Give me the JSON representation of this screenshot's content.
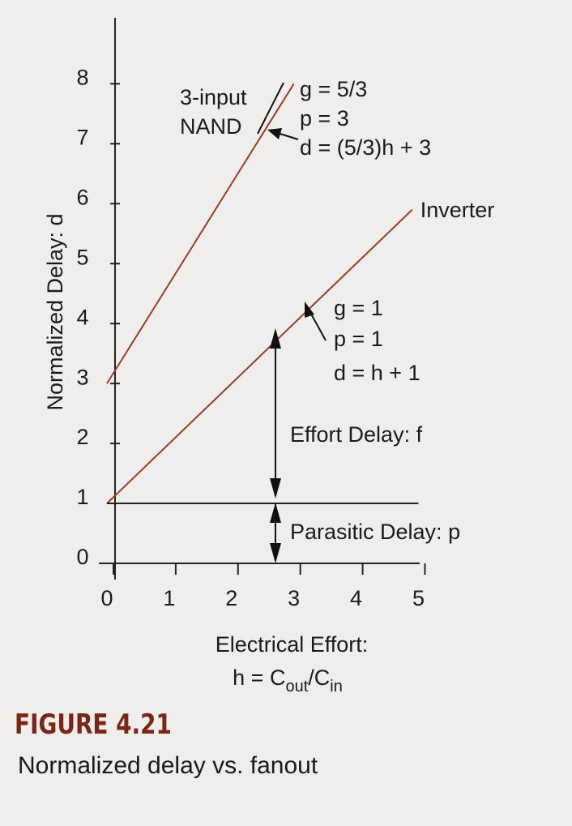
{
  "chart_data": {
    "type": "line",
    "ylabel": "Normalized Delay: d",
    "xlabel": "Electrical Effort:",
    "xlabel_formula": [
      "h = C",
      "out",
      "/C",
      "in"
    ],
    "xlim": [
      0,
      5.15
    ],
    "ylim": [
      0,
      9.1
    ],
    "xticks": [
      0,
      1,
      2,
      3,
      4,
      5
    ],
    "yticks": [
      0,
      1,
      2,
      3,
      4,
      5,
      6,
      7,
      8
    ],
    "series": [
      {
        "color": "#9a3a24",
        "x": [
          0,
          3
        ],
        "values": [
          3,
          8
        ]
      },
      {
        "name": "Inverter",
        "color": "#9a3a24",
        "x": [
          0,
          4.9
        ],
        "values": [
          1,
          5.9
        ]
      },
      {
        "color": "#222222",
        "x": [
          0,
          5
        ],
        "values": [
          1,
          1
        ]
      }
    ],
    "annotations": [
      "3-input",
      "NAND",
      "g = 5/3",
      "p = 3",
      "d = (5/3)h + 3",
      "g = 1",
      "p = 1",
      "d = h + 1",
      "Effort Delay: f",
      "Parasitic Delay: p"
    ],
    "figure_label": "FIGURE 4.21",
    "caption": "Normalized delay vs. fanout"
  }
}
